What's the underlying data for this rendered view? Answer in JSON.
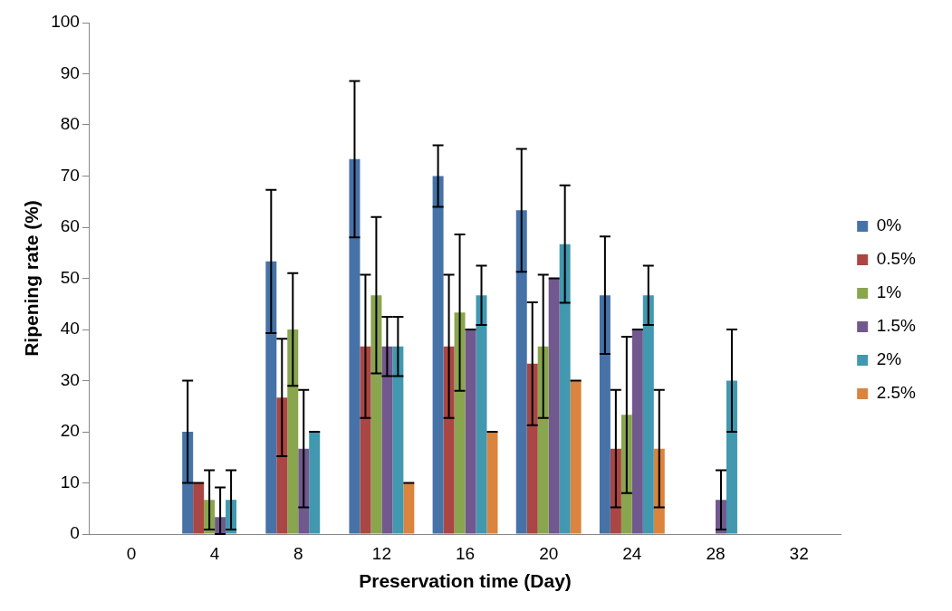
{
  "chart_data": {
    "type": "bar",
    "xlabel": "Preservation time (Day)",
    "ylabel": "Ripening rate (%)",
    "categories": [
      "0",
      "4",
      "8",
      "12",
      "16",
      "20",
      "24",
      "28",
      "32"
    ],
    "ylim": [
      0,
      100
    ],
    "yticks": [
      0,
      10,
      20,
      30,
      40,
      50,
      60,
      70,
      80,
      90,
      100
    ],
    "grid": false,
    "legend": "right",
    "series": [
      {
        "name": "0%",
        "color": "#4672a8",
        "values": [
          0,
          20,
          53.3,
          73.3,
          70,
          63.3,
          46.7,
          0,
          0
        ],
        "errors": [
          null,
          10,
          14,
          15.3,
          6,
          12,
          11.5,
          null,
          null
        ]
      },
      {
        "name": "0.5%",
        "color": "#aa4643",
        "values": [
          0,
          10,
          26.7,
          36.7,
          36.7,
          33.3,
          16.7,
          0,
          0
        ],
        "errors": [
          null,
          0,
          11.5,
          14,
          14,
          12,
          11.5,
          null,
          null
        ]
      },
      {
        "name": "1%",
        "color": "#89a54e",
        "values": [
          0,
          6.7,
          40,
          46.7,
          43.3,
          36.7,
          23.3,
          0,
          0
        ],
        "errors": [
          null,
          5.8,
          11,
          15.3,
          15.3,
          14,
          15.3,
          null,
          null
        ]
      },
      {
        "name": "1.5%",
        "color": "#71588f",
        "values": [
          0,
          3.3,
          16.7,
          36.7,
          40,
          50,
          40,
          6.7,
          0
        ],
        "errors": [
          null,
          [
            0,
            9.1
          ],
          11.5,
          5.8,
          0,
          0,
          0,
          5.8,
          null
        ]
      },
      {
        "name": "2%",
        "color": "#4198af",
        "values": [
          0,
          6.7,
          20,
          36.7,
          46.7,
          56.7,
          46.7,
          30,
          0
        ],
        "errors": [
          null,
          5.8,
          0,
          5.8,
          5.8,
          11.5,
          5.8,
          10,
          null
        ]
      },
      {
        "name": "2.5%",
        "color": "#db843d",
        "values": [
          0,
          0,
          0,
          10,
          20,
          30,
          16.7,
          0,
          0
        ],
        "errors": [
          null,
          null,
          null,
          0,
          0,
          0,
          11.5,
          null,
          null
        ]
      }
    ]
  }
}
